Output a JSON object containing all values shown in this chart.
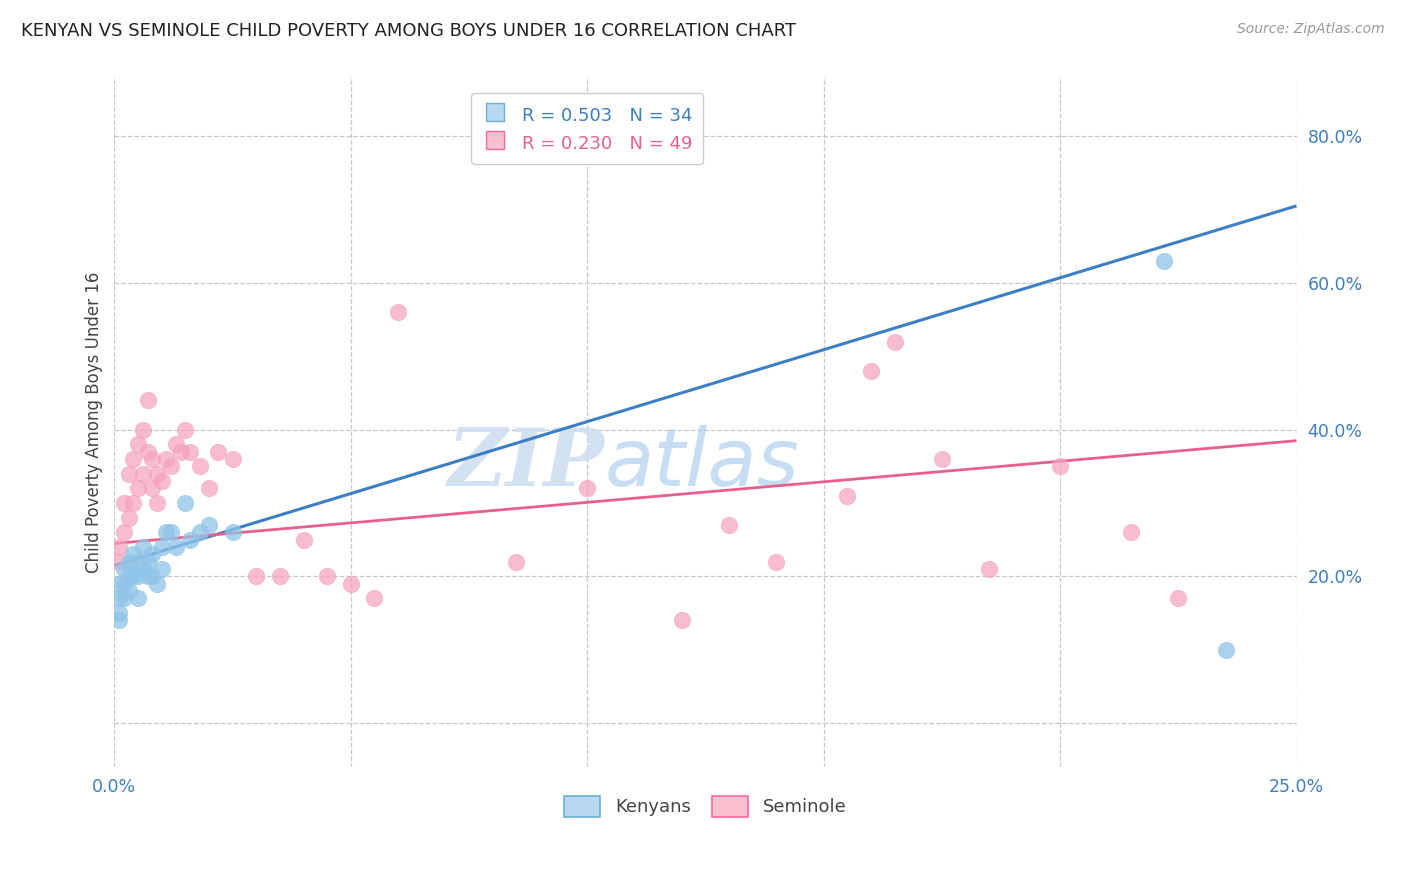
{
  "title": "KENYAN VS SEMINOLE CHILD POVERTY AMONG BOYS UNDER 16 CORRELATION CHART",
  "source": "Source: ZipAtlas.com",
  "ylabel": "Child Poverty Among Boys Under 16",
  "xlim": [
    0.0,
    0.25
  ],
  "ylim": [
    -0.06,
    0.88
  ],
  "legend_kenya": "R = 0.503   N = 34",
  "legend_seminole": "R = 0.230   N = 49",
  "kenya_scatter_color": "#8fc4e8",
  "seminole_scatter_color": "#f4a0bc",
  "kenya_line_color": "#3d7fc4",
  "seminole_line_color": "#e8608a",
  "kenya_line_y0": 0.215,
  "kenya_line_y1": 0.705,
  "seminole_line_y0": 0.245,
  "seminole_line_y1": 0.385,
  "watermark_zip": "ZIP",
  "watermark_atlas": "atlas",
  "background_color": "#ffffff",
  "kenya_x": [
    0.001,
    0.001,
    0.001,
    0.001,
    0.002,
    0.002,
    0.002,
    0.003,
    0.003,
    0.003,
    0.004,
    0.004,
    0.005,
    0.005,
    0.005,
    0.006,
    0.006,
    0.007,
    0.007,
    0.008,
    0.008,
    0.009,
    0.01,
    0.01,
    0.011,
    0.012,
    0.013,
    0.015,
    0.016,
    0.018,
    0.02,
    0.025,
    0.222,
    0.235
  ],
  "kenya_y": [
    0.19,
    0.17,
    0.15,
    0.14,
    0.21,
    0.19,
    0.17,
    0.22,
    0.2,
    0.18,
    0.23,
    0.2,
    0.22,
    0.2,
    0.17,
    0.24,
    0.21,
    0.22,
    0.2,
    0.23,
    0.2,
    0.19,
    0.24,
    0.21,
    0.26,
    0.26,
    0.24,
    0.3,
    0.25,
    0.26,
    0.27,
    0.26,
    0.63,
    0.1
  ],
  "seminole_x": [
    0.001,
    0.001,
    0.002,
    0.002,
    0.003,
    0.003,
    0.004,
    0.004,
    0.005,
    0.005,
    0.006,
    0.006,
    0.007,
    0.007,
    0.008,
    0.008,
    0.009,
    0.009,
    0.01,
    0.011,
    0.012,
    0.013,
    0.014,
    0.015,
    0.016,
    0.018,
    0.02,
    0.022,
    0.025,
    0.03,
    0.035,
    0.04,
    0.045,
    0.05,
    0.055,
    0.06,
    0.085,
    0.1,
    0.12,
    0.13,
    0.14,
    0.155,
    0.16,
    0.165,
    0.175,
    0.185,
    0.2,
    0.215,
    0.225
  ],
  "seminole_y": [
    0.24,
    0.22,
    0.3,
    0.26,
    0.34,
    0.28,
    0.36,
    0.3,
    0.38,
    0.32,
    0.4,
    0.34,
    0.44,
    0.37,
    0.36,
    0.32,
    0.34,
    0.3,
    0.33,
    0.36,
    0.35,
    0.38,
    0.37,
    0.4,
    0.37,
    0.35,
    0.32,
    0.37,
    0.36,
    0.2,
    0.2,
    0.25,
    0.2,
    0.19,
    0.17,
    0.56,
    0.22,
    0.32,
    0.14,
    0.27,
    0.22,
    0.31,
    0.48,
    0.52,
    0.36,
    0.21,
    0.35,
    0.26,
    0.17
  ]
}
